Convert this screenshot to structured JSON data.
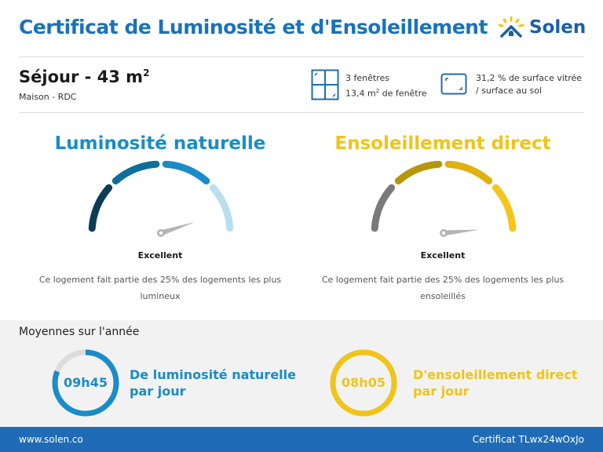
{
  "header": {
    "title": "Certificat de Luminosité et d'Ensoleillement",
    "logo": "Solen"
  },
  "room": {
    "name": "Séjour - 43 m",
    "name_sup": "2",
    "subtitle": "Maison - RDC"
  },
  "windows": {
    "count": "3 fenêtres",
    "area_prefix": "13,4 m",
    "area_sup": "2",
    "area_suffix": " de fenêtre",
    "icon": "window-icon"
  },
  "glazing": {
    "line1": "31,2 % de surface vitrée",
    "line2": "/ surface au sol",
    "icon": "surface-icon"
  },
  "gauges": [
    {
      "title": "Luminosité naturelle",
      "color": "#1a8cc8",
      "segment_colors": [
        "#0d3d56",
        "#0f6f9c",
        "#1a8cc8",
        "#b8dff0"
      ],
      "value": 0.9,
      "rating": "Excellent",
      "description": "Ce logement fait partie des 25% des logements les plus lumineux"
    },
    {
      "title": "Ensoleillement direct",
      "color": "#f0c419",
      "segment_colors": [
        "#7a7a7a",
        "#b8960a",
        "#e0b00e",
        "#f5c518"
      ],
      "value": 0.97,
      "rating": "Excellent",
      "description": "Ce logement fait partie des 25% des logements les plus ensoleillés"
    }
  ],
  "averages": {
    "title": "Moyennes sur l'année",
    "items": [
      {
        "time": "09h45",
        "label1": "De luminosité naturelle",
        "label2": "par jour",
        "color": "#1a8cc8",
        "fraction": 0.81
      },
      {
        "time": "08h05",
        "label1": "D'ensoleillement direct",
        "label2": "par jour",
        "color": "#f0c419",
        "fraction": 1.0
      }
    ]
  },
  "footer": {
    "website": "www.solen.co",
    "certificate": "Certificat TLwx24wOxJo"
  }
}
